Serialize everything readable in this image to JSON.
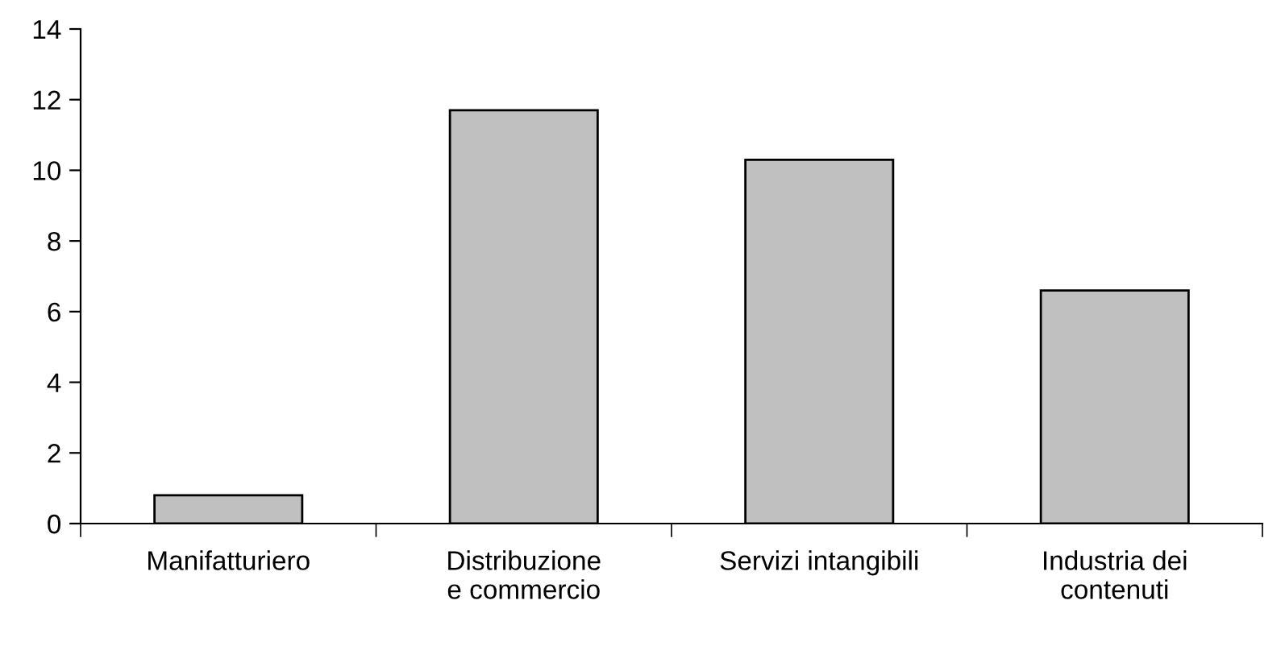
{
  "chart_data": {
    "type": "bar",
    "categories": [
      "Manifatturiero",
      "Distribuzione\ne commercio",
      "Servizi intangibili",
      "Industria dei\ncontenuti"
    ],
    "values": [
      0.8,
      11.7,
      10.3,
      6.6
    ],
    "color": "#c0c0c0",
    "ylim": [
      0,
      14
    ],
    "yticks": [
      0,
      2,
      4,
      6,
      8,
      10,
      12,
      14
    ],
    "grid": false,
    "legend": false
  }
}
